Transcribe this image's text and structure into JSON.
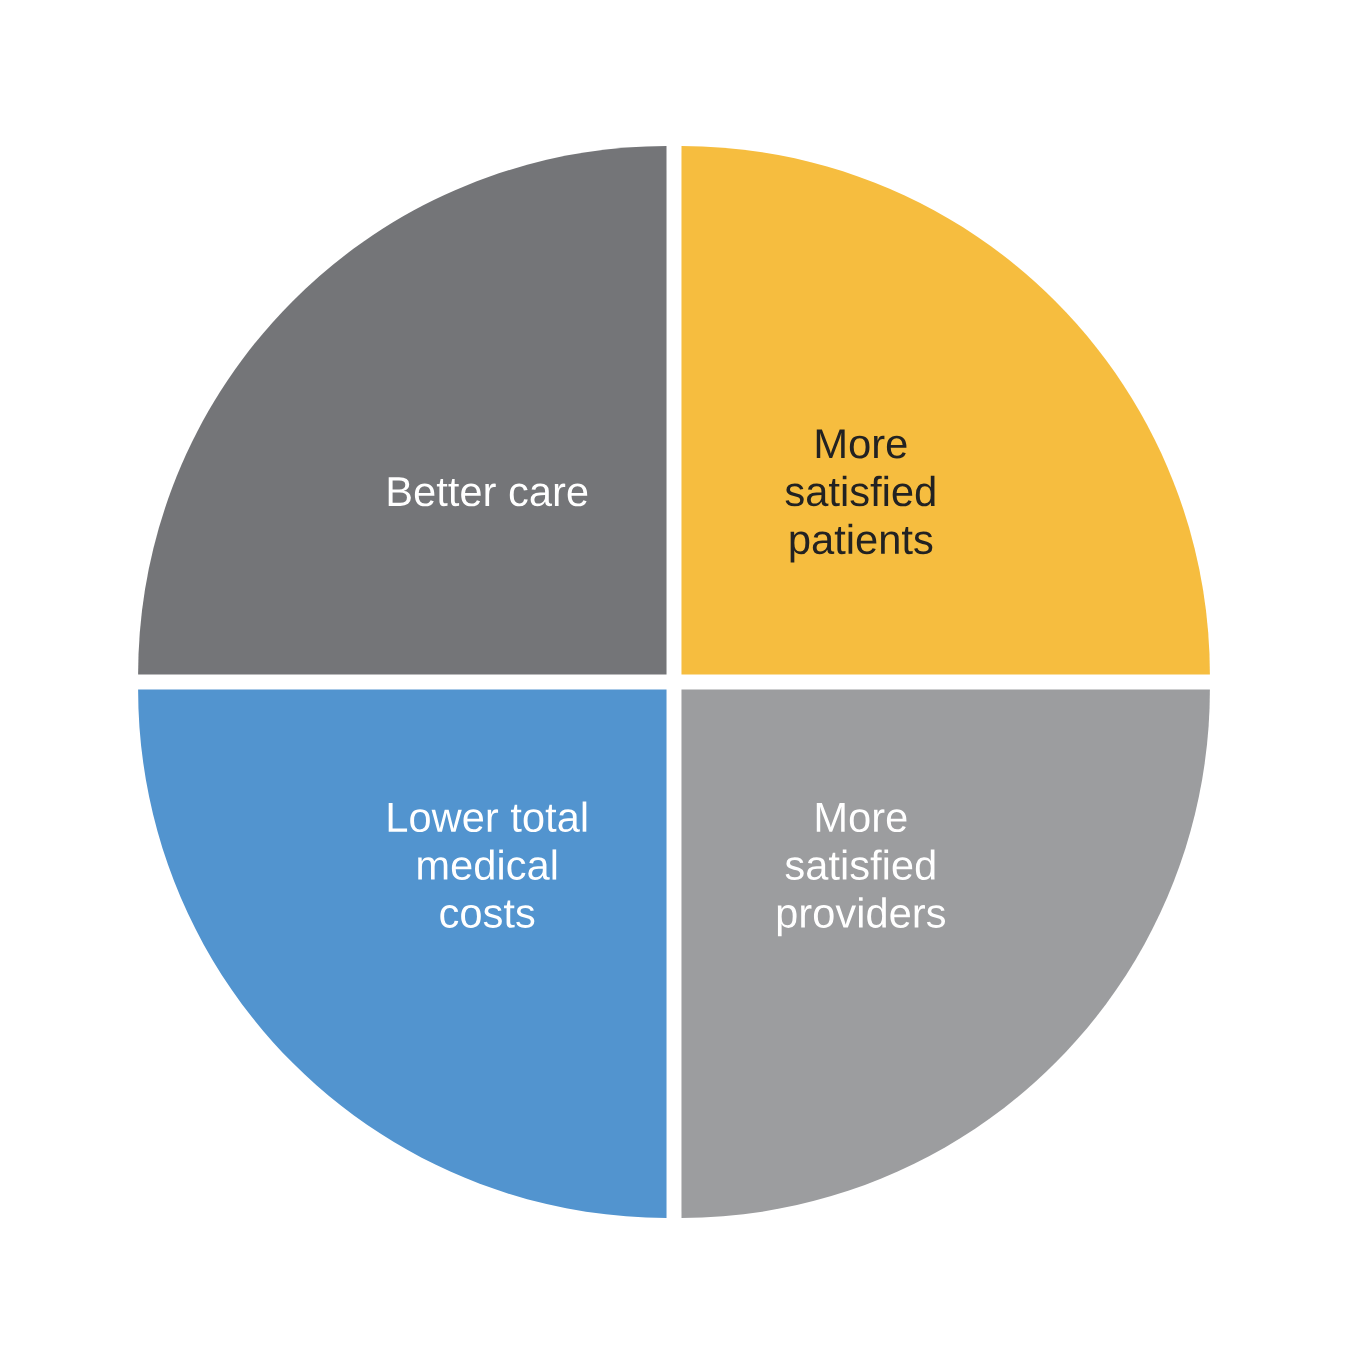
{
  "chart_data": {
    "type": "pie",
    "categories": [
      "More\nsatisfied\npatients",
      "More\nsatisfied\nproviders",
      "Lower total\nmedical\ncosts",
      "Better care"
    ],
    "values": [
      25,
      25,
      25,
      25
    ],
    "colors": [
      "#f6bd3f",
      "#9c9d9f",
      "#5294cf",
      "#747578"
    ]
  }
}
